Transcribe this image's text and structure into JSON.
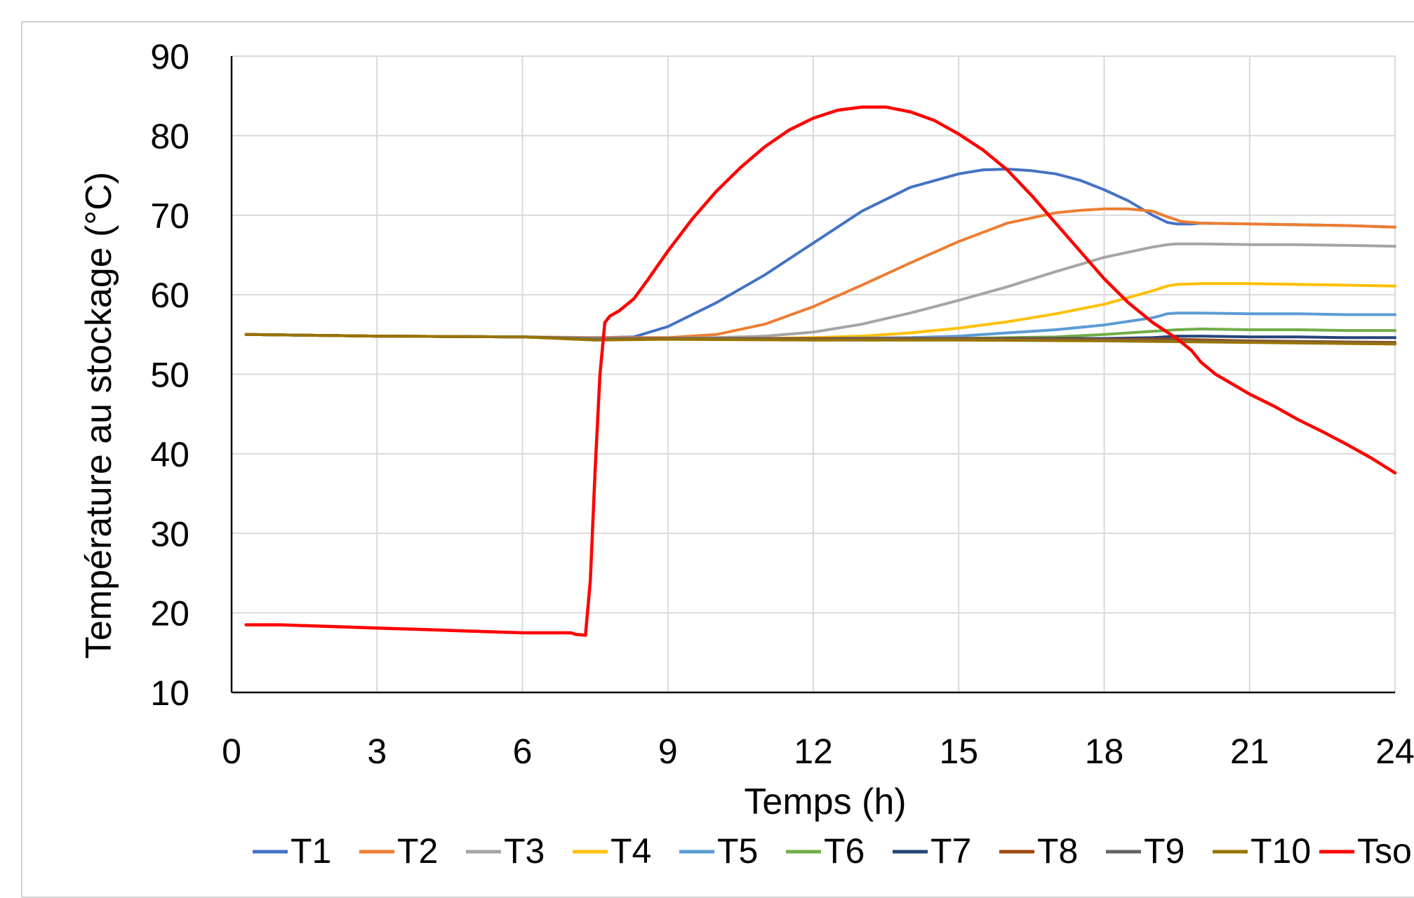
{
  "chart_data": {
    "type": "line",
    "title": "",
    "xlabel": "Temps (h)",
    "ylabel": "Température au stockage (°C)",
    "xlim": [
      0,
      24
    ],
    "ylim": [
      10,
      90
    ],
    "xticks": [
      0,
      3,
      6,
      9,
      12,
      15,
      18,
      21,
      24
    ],
    "yticks": [
      10,
      20,
      30,
      40,
      50,
      60,
      70,
      80,
      90
    ],
    "grid": true,
    "legend_position": "bottom",
    "series": [
      {
        "name": "T1",
        "color": "#4472C4",
        "x": [
          0.3,
          3,
          6,
          7,
          7.7,
          8.3,
          9,
          10,
          11,
          12,
          13,
          14,
          15,
          15.5,
          16,
          16.5,
          17,
          17.5,
          18,
          18.5,
          19,
          19.3,
          19.5,
          19.8,
          20,
          21,
          22,
          23,
          24
        ],
        "y": [
          55,
          54.8,
          54.7,
          54.6,
          54.6,
          54.7,
          56,
          59,
          62.5,
          66.5,
          70.5,
          73.5,
          75.2,
          75.7,
          75.8,
          75.6,
          75.2,
          74.4,
          73.2,
          71.8,
          70,
          69.1,
          68.9,
          68.9,
          69,
          68.9,
          68.8,
          68.7,
          68.5
        ]
      },
      {
        "name": "T2",
        "color": "#ED7D31",
        "x": [
          0.3,
          3,
          6,
          7.5,
          8,
          9,
          10,
          11,
          12,
          13,
          14,
          15,
          16,
          17,
          17.5,
          18,
          18.5,
          19,
          19.3,
          19.6,
          20,
          21,
          22,
          23,
          24
        ],
        "y": [
          55,
          54.8,
          54.7,
          54.6,
          54.6,
          54.6,
          55,
          56.3,
          58.5,
          61.2,
          64,
          66.7,
          69,
          70.3,
          70.6,
          70.8,
          70.8,
          70.5,
          69.8,
          69.2,
          69,
          68.9,
          68.8,
          68.7,
          68.5
        ]
      },
      {
        "name": "T3",
        "color": "#A5A5A5",
        "x": [
          0.3,
          3,
          6,
          7.5,
          9,
          10,
          11,
          12,
          13,
          14,
          15,
          16,
          17,
          18,
          19,
          19.3,
          19.5,
          20,
          21,
          22,
          23,
          24
        ],
        "y": [
          55,
          54.8,
          54.7,
          54.5,
          54.5,
          54.6,
          54.8,
          55.3,
          56.3,
          57.7,
          59.3,
          61,
          62.9,
          64.7,
          66,
          66.3,
          66.4,
          66.4,
          66.3,
          66.3,
          66.2,
          66.1
        ]
      },
      {
        "name": "T4",
        "color": "#FFC000",
        "x": [
          0.3,
          3,
          6,
          7.5,
          9,
          11,
          12,
          13,
          14,
          15,
          16,
          17,
          18,
          19,
          19.3,
          19.5,
          20,
          21,
          22,
          23,
          24
        ],
        "y": [
          55,
          54.8,
          54.7,
          54.5,
          54.5,
          54.5,
          54.6,
          54.8,
          55.2,
          55.8,
          56.6,
          57.6,
          58.8,
          60.5,
          61.1,
          61.3,
          61.4,
          61.4,
          61.3,
          61.2,
          61.1
        ]
      },
      {
        "name": "T5",
        "color": "#5B9BD5",
        "x": [
          0.3,
          3,
          6,
          7.5,
          9,
          12,
          14,
          15,
          16,
          17,
          18,
          19,
          19.3,
          19.5,
          20,
          21,
          22,
          23,
          24
        ],
        "y": [
          55,
          54.8,
          54.7,
          54.5,
          54.5,
          54.5,
          54.6,
          54.8,
          55.2,
          55.6,
          56.2,
          57.1,
          57.6,
          57.7,
          57.7,
          57.6,
          57.6,
          57.5,
          57.5
        ]
      },
      {
        "name": "T6",
        "color": "#70AD47",
        "x": [
          0.3,
          3,
          6,
          7.5,
          9,
          12,
          15,
          17,
          18,
          19,
          19.5,
          20,
          21,
          22,
          23,
          24
        ],
        "y": [
          55,
          54.8,
          54.7,
          54.4,
          54.5,
          54.5,
          54.5,
          54.7,
          55,
          55.4,
          55.6,
          55.7,
          55.6,
          55.6,
          55.5,
          55.5
        ]
      },
      {
        "name": "T7",
        "color": "#264478",
        "x": [
          0.3,
          3,
          6,
          7.5,
          9,
          12,
          15,
          17,
          18,
          19,
          19.5,
          20,
          21,
          22,
          23,
          24
        ],
        "y": [
          55,
          54.8,
          54.7,
          54.4,
          54.5,
          54.5,
          54.5,
          54.5,
          54.5,
          54.6,
          54.8,
          54.8,
          54.7,
          54.7,
          54.6,
          54.6
        ]
      },
      {
        "name": "T8",
        "color": "#9E480E",
        "x": [
          0.3,
          3,
          6,
          7.5,
          9,
          12,
          15,
          18,
          19.5,
          21,
          24
        ],
        "y": [
          55,
          54.8,
          54.7,
          54.4,
          54.5,
          54.5,
          54.5,
          54.4,
          54.4,
          54.2,
          54.0
        ]
      },
      {
        "name": "T9",
        "color": "#636363",
        "x": [
          0.3,
          3,
          6,
          7.5,
          9,
          12,
          15,
          18,
          19.5,
          21,
          24
        ],
        "y": [
          55,
          54.8,
          54.7,
          54.4,
          54.5,
          54.4,
          54.4,
          54.3,
          54.2,
          54.1,
          53.9
        ]
      },
      {
        "name": "T10",
        "color": "#997300",
        "x": [
          0.3,
          3,
          6,
          7.5,
          9,
          12,
          15,
          18,
          19.5,
          21,
          24
        ],
        "y": [
          55,
          54.8,
          54.7,
          54.3,
          54.4,
          54.3,
          54.3,
          54.2,
          54.1,
          54.0,
          53.8
        ]
      },
      {
        "name": "Tsol",
        "color": "#FF0000",
        "x": [
          0.3,
          1,
          2,
          3,
          4,
          5,
          6,
          6.5,
          7,
          7.1,
          7.3,
          7.4,
          7.5,
          7.6,
          7.7,
          7.8,
          8,
          8.3,
          8.6,
          9,
          9.5,
          10,
          10.5,
          11,
          11.5,
          12,
          12.5,
          13,
          13.5,
          14,
          14.5,
          15,
          15.5,
          16,
          16.5,
          17,
          17.5,
          18,
          18.5,
          19,
          19.5,
          19.8,
          20,
          20.3,
          21,
          21.5,
          22,
          22.5,
          23,
          23.5,
          24
        ],
        "y": [
          18.5,
          18.5,
          18.3,
          18.1,
          17.9,
          17.7,
          17.5,
          17.5,
          17.5,
          17.3,
          17.2,
          24,
          38,
          50,
          56.5,
          57.3,
          58,
          59.5,
          62,
          65.5,
          69.5,
          73,
          76,
          78.6,
          80.7,
          82.2,
          83.2,
          83.6,
          83.6,
          83,
          81.9,
          80.2,
          78.2,
          75.7,
          72.5,
          69,
          65.5,
          62,
          59,
          56.5,
          54.5,
          53,
          51.5,
          50,
          47.5,
          46,
          44.3,
          42.8,
          41.2,
          39.5,
          37.6
        ]
      }
    ]
  }
}
